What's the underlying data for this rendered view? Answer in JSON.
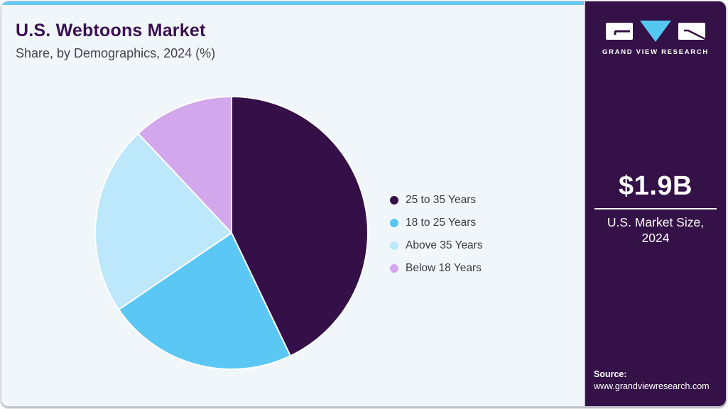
{
  "page": {
    "title": "U.S. Webtoons Market",
    "subtitle": "Share, by Demographics, 2024 (%)"
  },
  "chart_data": {
    "type": "pie",
    "title": "U.S. Webtoons Market Share, by Demographics, 2024 (%)",
    "labels": [
      "25 to 35 Years",
      "18 to 25 Years",
      "Above 35 Years",
      "Below 18 Years"
    ],
    "values": [
      42.9,
      22.6,
      22.5,
      12.0
    ],
    "unit": "%",
    "colors": [
      "#351048",
      "#5ac7f4",
      "#bde7fa",
      "#d2a7eb"
    ],
    "start_angle_deg": 0,
    "direction": "clockwise",
    "legend_position": "right",
    "slice_border_color": "#ffffff"
  },
  "sidebar": {
    "logo": {
      "brand": "GRAND VIEW RESEARCH"
    },
    "market_size": {
      "value": "$1.9B",
      "caption_line1": "U.S. Market Size,",
      "caption_line2": "2024"
    },
    "source": {
      "label": "Source:",
      "url": "www.grandviewresearch.com"
    }
  },
  "theme": {
    "accent_bar": "#65cbf3",
    "sidebar_bg": "#341147",
    "main_bg": "#f1f6fa",
    "title_color": "#3a1053"
  }
}
